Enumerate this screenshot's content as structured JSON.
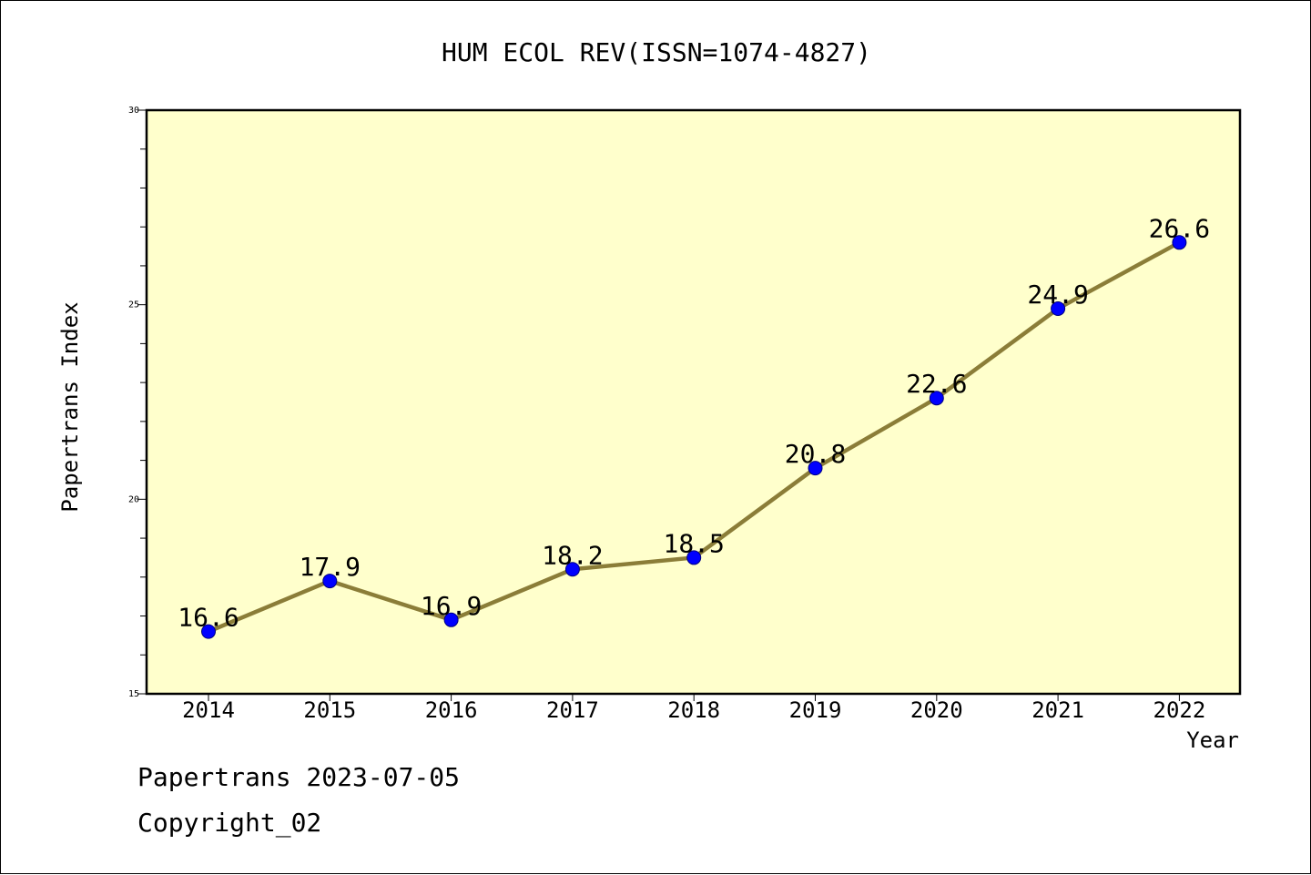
{
  "chart_data": {
    "type": "line",
    "title": "HUM ECOL REV(ISSN=1074-4827)",
    "xlabel": "Year",
    "ylabel": "Papertrans Index",
    "categories": [
      "2014",
      "2015",
      "2016",
      "2017",
      "2018",
      "2019",
      "2020",
      "2021",
      "2022"
    ],
    "values": [
      16.6,
      17.9,
      16.9,
      18.2,
      18.5,
      20.8,
      22.6,
      24.9,
      26.6
    ],
    "data_labels": [
      "16.6",
      "17.9",
      "16.9",
      "18.2",
      "18.5",
      "20.8",
      "22.6",
      "24.9",
      "26.6"
    ],
    "ylim": [
      15,
      30
    ],
    "yticks": [
      15,
      20,
      25,
      30
    ],
    "ytick_labels": [
      "15",
      "20",
      "25",
      "30"
    ],
    "y_minor_step": 1,
    "grid": false,
    "colors": {
      "plot_background": "#ffffcc",
      "line": "#8b7d38",
      "marker": "#0000ff"
    }
  },
  "footer": {
    "line1": "Papertrans 2023-07-05",
    "line2": "Copyright_02"
  }
}
